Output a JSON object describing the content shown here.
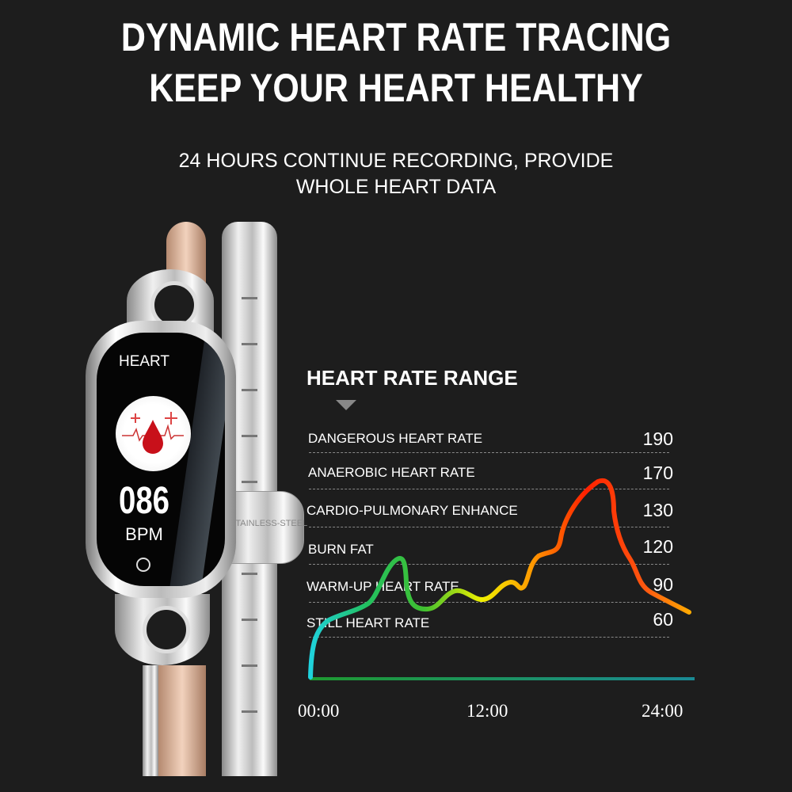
{
  "headline": {
    "line1": "DYNAMIC HEART RATE TRACING",
    "line2": "KEEP YOUR HEART HEALTHY"
  },
  "subheadline": {
    "line1": "24 HOURS CONTINUE RECORDING, PROVIDE",
    "line2": "WHOLE HEART DATA"
  },
  "watch": {
    "screen_title": "HEART",
    "bpm_value": "086",
    "bpm_unit": "BPM",
    "clasp_engraving": "STAINLESS-STEEL",
    "icons": [
      "blood-drop-icon",
      "plus-icon",
      "heartbeat-icon",
      "home-button-icon"
    ]
  },
  "chart": {
    "title": "HEART RATE RANGE",
    "zones": [
      {
        "label": "DANGEROUS HEART RATE",
        "value": "190"
      },
      {
        "label": "ANAEROBIC HEART RATE",
        "value": "170"
      },
      {
        "label": "CARDIO-PULMONARY ENHANCE",
        "value": "130"
      },
      {
        "label": "BURN FAT",
        "value": "120"
      },
      {
        "label": "WARM-UP HEART RATE",
        "value": "90"
      },
      {
        "label": "STILL HEART RATE",
        "value": "60"
      }
    ],
    "x_ticks": [
      "00:00",
      "12:00",
      "24:00"
    ],
    "colors": {
      "low": "#1fd3e0",
      "mid": "#f0f000",
      "high": "#ff2000",
      "baseline": "#1f8f6a"
    }
  }
}
